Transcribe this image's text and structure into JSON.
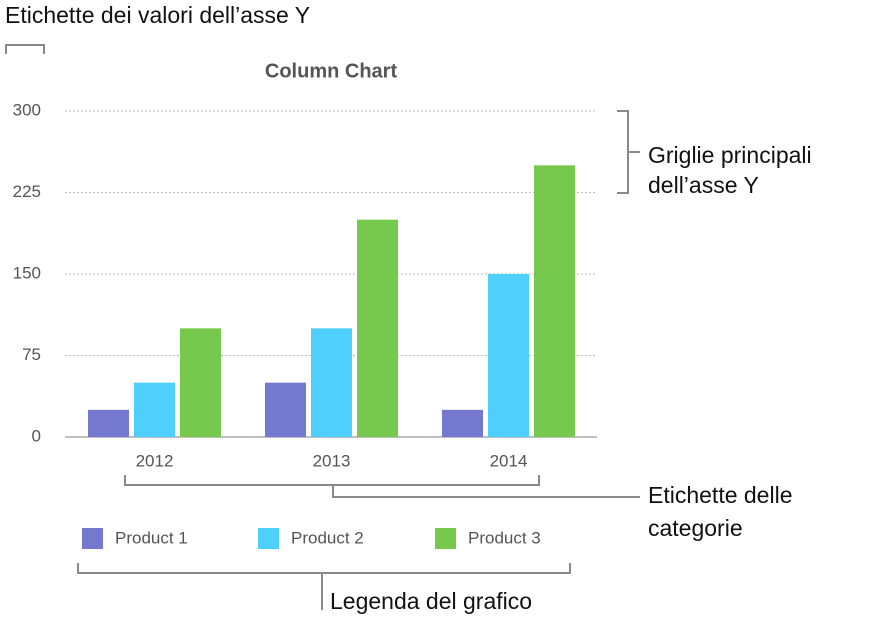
{
  "chart_data": {
    "type": "bar",
    "title": "Column Chart",
    "categories": [
      "2012",
      "2013",
      "2014"
    ],
    "series": [
      {
        "name": "Product 1",
        "color": "#7478cf",
        "values": [
          25,
          50,
          25
        ]
      },
      {
        "name": "Product 2",
        "color": "#4fcffb",
        "values": [
          50,
          100,
          150
        ]
      },
      {
        "name": "Product 3",
        "color": "#77c94e",
        "values": [
          100,
          200,
          250
        ]
      }
    ],
    "ylim": [
      0,
      300
    ],
    "yticks": [
      0,
      75,
      150,
      225,
      300
    ],
    "grid": true,
    "legend": "bottom"
  },
  "annotations": [
    {
      "lines": [
        "Etichette dei valori dell’asse Y"
      ]
    },
    {
      "lines": [
        "Griglie principali",
        "dell’asse Y"
      ]
    },
    {
      "lines": [
        "Etichette delle",
        "categorie"
      ]
    },
    {
      "lines": [
        "Legenda del grafico"
      ]
    }
  ]
}
